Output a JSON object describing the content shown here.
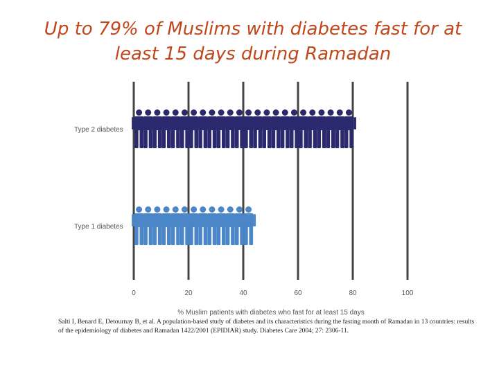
{
  "title": "Up to 79% of Muslims with diabetes fast for at least 15 days during Ramadan",
  "chart_data": {
    "type": "bar",
    "orientation": "horizontal",
    "rendering": "pictogram",
    "categories": [
      "Type 2 diabetes",
      "Type 1 diabetes"
    ],
    "values": [
      79,
      43
    ],
    "xlabel": "% Muslim patients with diabetes who fast for at least 15 days",
    "xlim": [
      0,
      100
    ],
    "xticks": [
      0,
      20,
      40,
      60,
      80,
      100
    ],
    "colors": {
      "Type 2 diabetes": "#2b2a6e",
      "Type 1 diabetes": "#4a86c8"
    },
    "grid": true
  },
  "citation": "Salti I, Benard E, Detournay B, et al. A population-based study of diabetes and its characteristics during the fasting month of Ramadan in 13 countries: results of the epidemiology of diabetes and Ramadan 1422/2001 (EPIDIAR) study. Diabetes Care 2004; 27: 2306-11."
}
